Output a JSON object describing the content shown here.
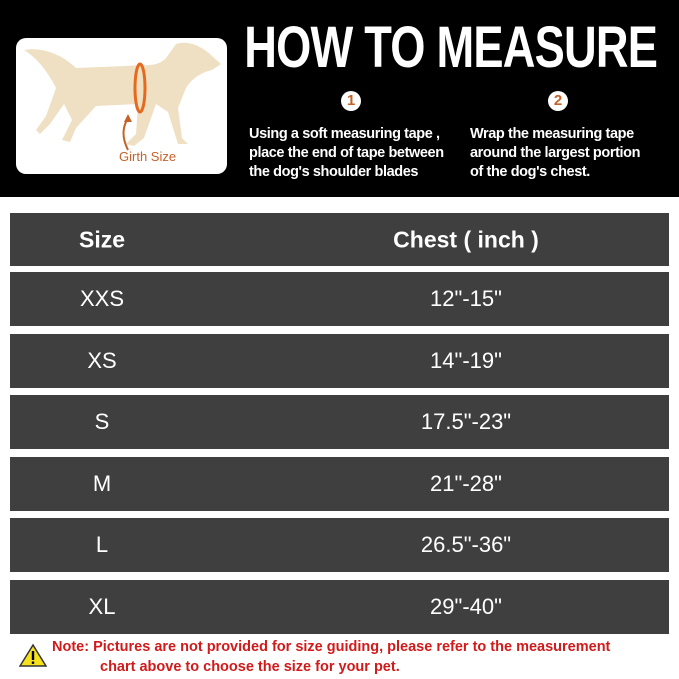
{
  "header": {
    "title": "HOW TO MEASURE",
    "image_label": "Girth Size",
    "steps": [
      {
        "number": "1",
        "text_lines": [
          "Using a soft measuring tape ,",
          "place the end of tape between",
          "the dog's shoulder blades"
        ]
      },
      {
        "number": "2",
        "text_lines": [
          "Wrap the measuring tape",
          "around the largest portion",
          "of the dog's chest."
        ]
      }
    ]
  },
  "table": {
    "headers": [
      "Size",
      "Chest ( inch )"
    ],
    "rows": [
      [
        "XXS",
        "12\"-15\""
      ],
      [
        "XS",
        "14\"-19\""
      ],
      [
        "S",
        "17.5\"-23\""
      ],
      [
        "M",
        "21\"-28\""
      ],
      [
        "L",
        "26.5\"-36\""
      ],
      [
        "XL",
        "29\"-40\""
      ]
    ]
  },
  "note": {
    "line1": "Note: Pictures are not provided for size guiding, please refer to the measurement",
    "line2": "chart above to choose the size for your pet.",
    "icon": "warning-icon"
  },
  "colors": {
    "accent": "#c5622a",
    "row": "#3f3f3f",
    "note": "#d11a1a"
  }
}
